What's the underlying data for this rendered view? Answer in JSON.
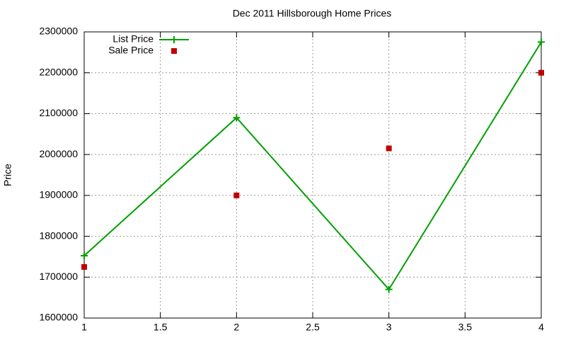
{
  "chart_data": {
    "type": "line",
    "title": "Dec 2011 Hillsborough Home Prices",
    "y_label": "Price",
    "x": [
      1,
      2,
      3,
      4
    ],
    "series": [
      {
        "name": "List Price",
        "color": "#00a000",
        "style": "linespoints",
        "marker": "plus",
        "values": [
          1752500,
          2090000,
          1670000,
          2275000
        ]
      },
      {
        "name": "Sale Price",
        "color": "#c00000",
        "style": "points",
        "marker": "square",
        "values": [
          1725000,
          1900000,
          2015000,
          2200000
        ]
      }
    ],
    "xlim": [
      1,
      4
    ],
    "xticks": [
      1,
      1.5,
      2,
      2.5,
      3,
      3.5,
      4
    ],
    "ylim": [
      1600000,
      2300000
    ],
    "yticks": [
      1600000,
      1700000,
      1800000,
      1900000,
      2000000,
      2100000,
      2200000,
      2300000
    ],
    "grid": true,
    "legend": "top-left"
  }
}
